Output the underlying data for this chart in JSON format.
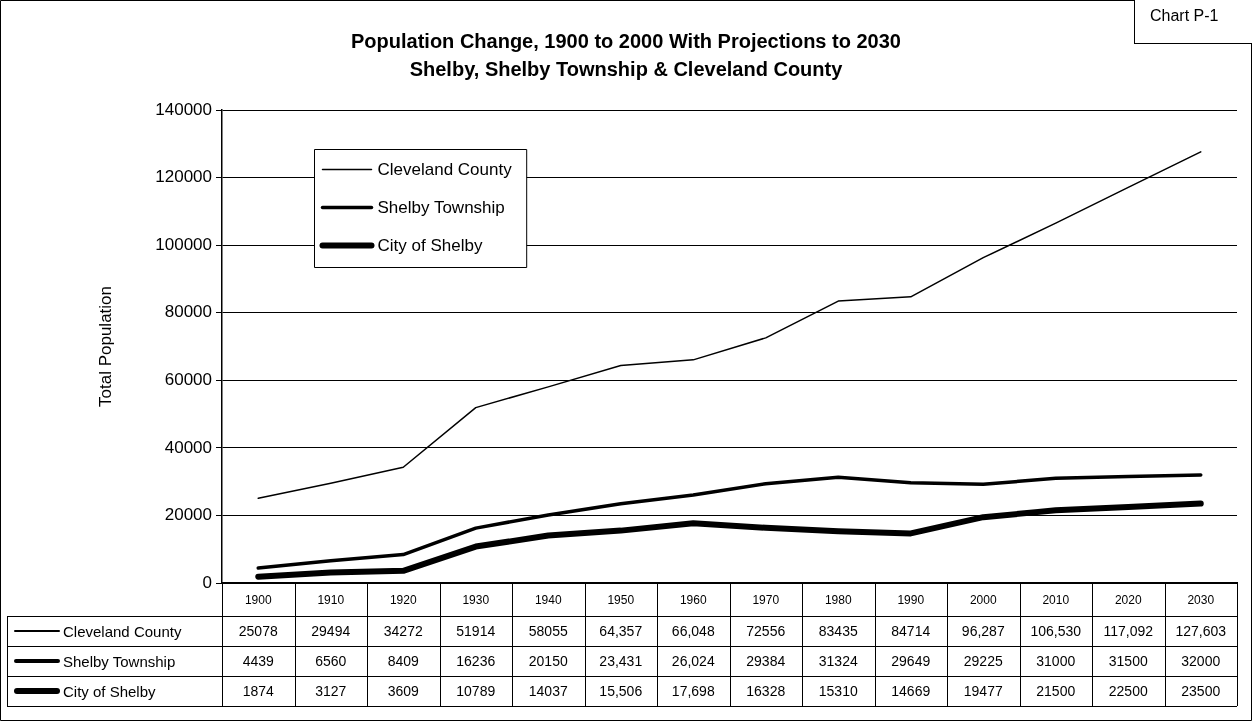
{
  "chart_data": {
    "type": "line",
    "title": "Population Change, 1900 to 2000 With Projections to 2030",
    "subtitle": "Shelby, Shelby Township & Cleveland County",
    "ylabel": "Total Population",
    "annotations": [
      "Chart P-1"
    ],
    "categories": [
      "1900",
      "1910",
      "1920",
      "1930",
      "1940",
      "1950",
      "1960",
      "1970",
      "1980",
      "1990",
      "2000",
      "2010",
      "2020",
      "2030"
    ],
    "series": [
      {
        "name": "Cleveland County",
        "color": "#000000",
        "values": [
          25078,
          29494,
          34272,
          51914,
          58055,
          64357,
          66048,
          72556,
          83435,
          84714,
          96287,
          106530,
          117092,
          127603
        ],
        "value_labels": [
          "25078",
          "29494",
          "34272",
          "51914",
          "58055",
          "64,357",
          "66,048",
          "72556",
          "83435",
          "84714",
          "96,287",
          "106,530",
          "117,092",
          "127,603"
        ]
      },
      {
        "name": "Shelby Township",
        "color": "#000000",
        "values": [
          4439,
          6560,
          8409,
          16236,
          20150,
          23431,
          26024,
          29384,
          31324,
          29649,
          29225,
          31000,
          31500,
          32000
        ],
        "value_labels": [
          "4439",
          "6560",
          "8409",
          "16236",
          "20150",
          "23,431",
          "26,024",
          "29384",
          "31324",
          "29649",
          "29225",
          "31000",
          "31500",
          "32000"
        ]
      },
      {
        "name": "City of Shelby",
        "color": "#000000",
        "values": [
          1874,
          3127,
          3609,
          10789,
          14037,
          15506,
          17698,
          16328,
          15310,
          14669,
          19477,
          21500,
          22500,
          23500
        ],
        "value_labels": [
          "1874",
          "3127",
          "3609",
          "10789",
          "14037",
          "15,506",
          "17,698",
          "16328",
          "15310",
          "14669",
          "19477",
          "21500",
          "22500",
          "23500"
        ]
      }
    ],
    "ylim": [
      0,
      140000
    ],
    "yticks": [
      0,
      20000,
      40000,
      60000,
      80000,
      100000,
      120000,
      140000
    ],
    "grid": "y",
    "legend": "top left"
  }
}
